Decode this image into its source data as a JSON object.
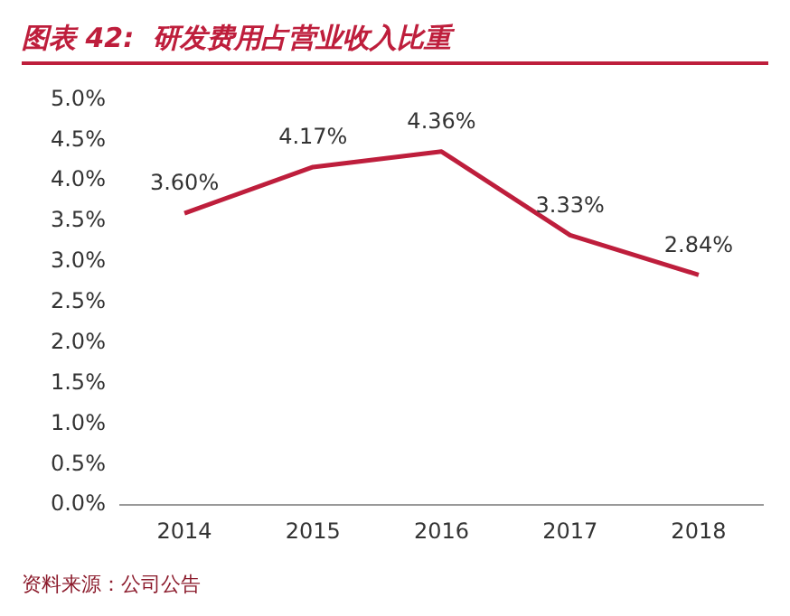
{
  "chart_data": {
    "type": "line",
    "title": "图表 42:  研发费用占营业收入比重",
    "categories": [
      "2014",
      "2015",
      "2016",
      "2017",
      "2018"
    ],
    "series": [
      {
        "color": "#be1e3c",
        "values": [
          3.6,
          4.17,
          4.36,
          3.33,
          2.84
        ],
        "value_labels": [
          "3.60%",
          "4.17%",
          "4.36%",
          "3.33%",
          "2.84%"
        ]
      }
    ],
    "ylim": [
      0,
      5
    ],
    "yticks": [
      {
        "value": 0,
        "label": "0.0%"
      },
      {
        "value": 0.5,
        "label": "0.5%"
      },
      {
        "value": 1,
        "label": "1.0%"
      },
      {
        "value": 1.5,
        "label": "1.5%"
      },
      {
        "value": 2,
        "label": "2.0%"
      },
      {
        "value": 2.5,
        "label": "2.5%"
      },
      {
        "value": 3,
        "label": "3.0%"
      },
      {
        "value": 3.5,
        "label": "3.5%"
      },
      {
        "value": 4,
        "label": "4.0%"
      },
      {
        "value": 4.5,
        "label": "4.5%"
      },
      {
        "value": 5,
        "label": "5.0%"
      }
    ],
    "grid": false,
    "legend": false,
    "marker": "none",
    "line_style": "solid",
    "annotations": [
      "资料来源：公司公告"
    ]
  }
}
